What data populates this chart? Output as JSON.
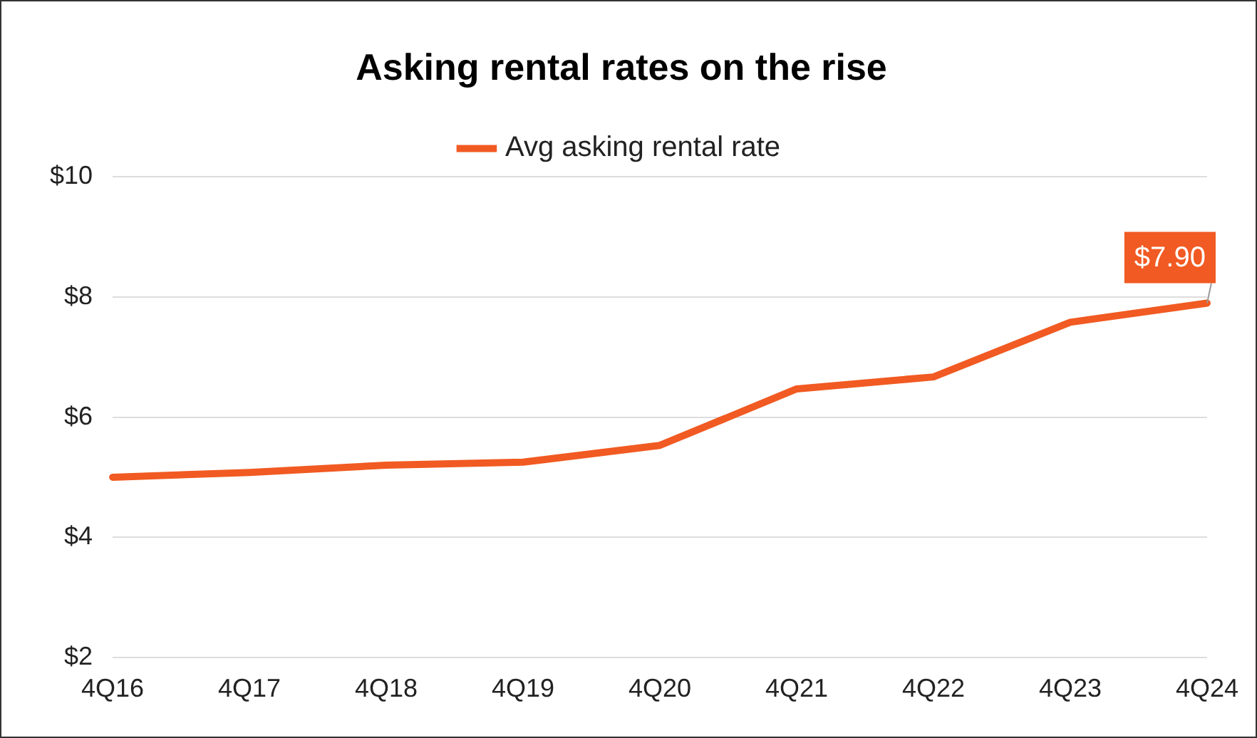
{
  "chart_data": {
    "type": "line",
    "title": "Asking rental rates on the rise",
    "categories": [
      "4Q16",
      "4Q17",
      "4Q18",
      "4Q19",
      "4Q20",
      "4Q21",
      "4Q22",
      "4Q23",
      "4Q24"
    ],
    "series": [
      {
        "name": "Avg asking rental rate",
        "color": "#f15a22",
        "values": [
          5.0,
          5.08,
          5.2,
          5.25,
          5.53,
          6.47,
          6.67,
          7.58,
          7.9
        ],
        "value_labels": [
          null,
          null,
          null,
          null,
          null,
          null,
          null,
          null,
          "$7.90"
        ]
      }
    ],
    "ylim": [
      2,
      10
    ],
    "yticks": [
      {
        "value": 2,
        "label": "$2"
      },
      {
        "value": 4,
        "label": "$4"
      },
      {
        "value": 6,
        "label": "$6"
      },
      {
        "value": 8,
        "label": "$8"
      },
      {
        "value": 10,
        "label": "$10"
      }
    ],
    "grid": "y",
    "legend": "top",
    "marker": "none",
    "line_style": "solid"
  }
}
